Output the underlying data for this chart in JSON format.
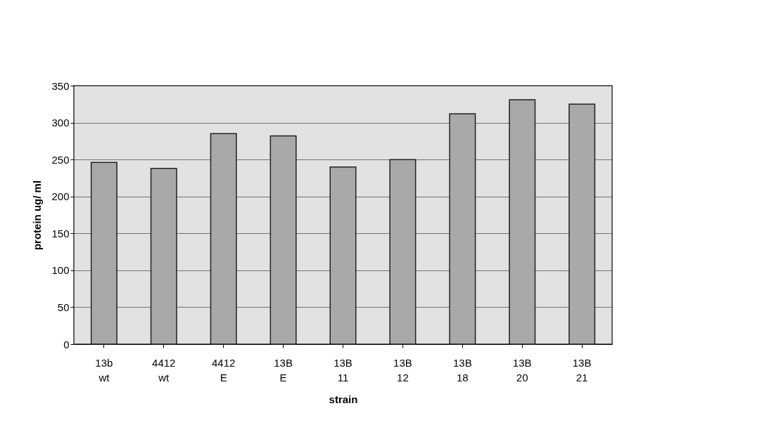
{
  "chart_data": {
    "type": "bar",
    "xlabel": "strain",
    "ylabel": "protein ug/ ml",
    "categories": [
      "13b wt",
      "4412 wt",
      "4412 E",
      "13B E",
      "13B 11",
      "13B 12",
      "13B 18",
      "13B 20",
      "13B 21"
    ],
    "values": [
      246,
      238,
      285,
      282,
      240,
      250,
      312,
      331,
      325
    ],
    "color": "#a9a9a9",
    "ylim": [
      0,
      350
    ],
    "yticks": [
      0,
      50,
      100,
      150,
      200,
      250,
      300,
      350
    ],
    "grid": "y"
  }
}
